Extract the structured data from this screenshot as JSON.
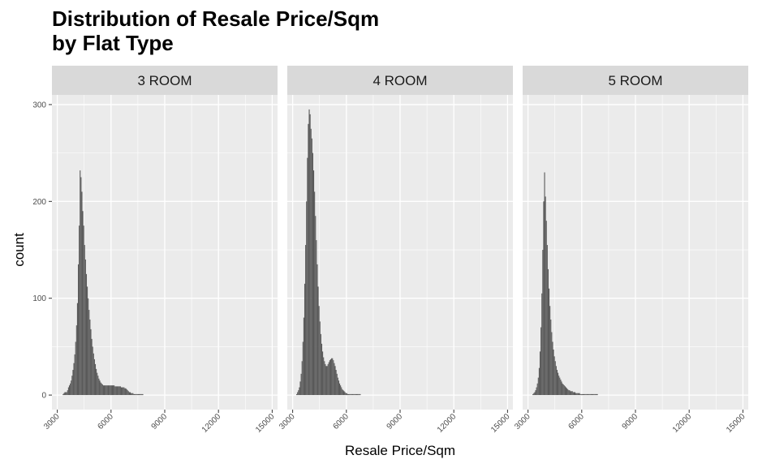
{
  "chart_data": {
    "type": "bar",
    "title_lines": [
      "Distribution of Resale Price/Sqm",
      "by Flat Type"
    ],
    "xlabel": "Resale Price/Sqm",
    "ylabel": "count",
    "xlim": [
      2700,
      15300
    ],
    "ylim": [
      -15,
      310
    ],
    "x_ticks": [
      3000,
      6000,
      9000,
      12000,
      15000
    ],
    "y_ticks": [
      0,
      100,
      200,
      300
    ],
    "bin_width": 50,
    "bar_color": "#595959",
    "panel_bg": "#ebebeb",
    "strip_bg": "#d9d9d9",
    "grid": true,
    "facets": [
      {
        "label": "3 ROOM",
        "x_start": 3200,
        "values": [
          0,
          0,
          1,
          2,
          3,
          3,
          3,
          5,
          8,
          10,
          12,
          15,
          20,
          26,
          33,
          42,
          55,
          72,
          95,
          135,
          175,
          232,
          225,
          210,
          190,
          175,
          155,
          140,
          125,
          112,
          100,
          88,
          78,
          68,
          58,
          50,
          43,
          37,
          32,
          27,
          23,
          20,
          17,
          15,
          13,
          12,
          11,
          10,
          10,
          10,
          10,
          10,
          10,
          10,
          10,
          10,
          10,
          10,
          10,
          10,
          9,
          9,
          9,
          9,
          9,
          9,
          9,
          8,
          8,
          8,
          8,
          7,
          7,
          6,
          5,
          4,
          3,
          3,
          2,
          2,
          2,
          1,
          1,
          1,
          1,
          1,
          1,
          1,
          1,
          1,
          1,
          1,
          0,
          0,
          0,
          0,
          0,
          0,
          0,
          0,
          0,
          0,
          0,
          0,
          0,
          0,
          0,
          0,
          0,
          0,
          0,
          0,
          0,
          0,
          0,
          0,
          0,
          0,
          0,
          0,
          0,
          0,
          0,
          0,
          0,
          0,
          0,
          0,
          0,
          0,
          0,
          0,
          0,
          0,
          0,
          0,
          0,
          0,
          0,
          0,
          0,
          0,
          0,
          0,
          0,
          0,
          0,
          0,
          0,
          0,
          0,
          0,
          0,
          0,
          0,
          0,
          0,
          0,
          0,
          0,
          0,
          0,
          0,
          0,
          0,
          0,
          0,
          0,
          0,
          0,
          0,
          0,
          0,
          0,
          0,
          0,
          0,
          0,
          0,
          0,
          0,
          0,
          0,
          0,
          0,
          0,
          0,
          0,
          0,
          0,
          0,
          0,
          0,
          0,
          0,
          0,
          0,
          0,
          0,
          0,
          0,
          0,
          0,
          0,
          0,
          0,
          0,
          0,
          0,
          0,
          0,
          0,
          0,
          0,
          0,
          0,
          0,
          0,
          0,
          0,
          0,
          0,
          0,
          0,
          0,
          0,
          0,
          0,
          0,
          0,
          0,
          0,
          0,
          0,
          0,
          0,
          0
        ]
      },
      {
        "label": "4 ROOM",
        "x_start": 3200,
        "values": [
          1,
          3,
          5,
          8,
          14,
          22,
          35,
          55,
          80,
          115,
          155,
          200,
          245,
          280,
          295,
          290,
          275,
          265,
          250,
          232,
          210,
          185,
          160,
          135,
          112,
          92,
          76,
          63,
          53,
          45,
          39,
          35,
          32,
          30,
          30,
          32,
          34,
          36,
          37,
          38,
          38,
          36,
          33,
          30,
          26,
          22,
          18,
          15,
          12,
          10,
          8,
          6,
          5,
          4,
          3,
          2,
          2,
          1,
          1,
          1,
          1,
          1,
          1,
          1,
          1,
          1,
          1,
          1,
          1,
          1,
          1,
          1,
          0,
          0,
          0,
          0,
          0,
          0,
          0,
          0,
          0,
          0,
          0,
          0,
          0,
          0,
          0,
          0,
          0,
          0,
          0,
          0,
          0,
          0,
          0,
          0,
          0,
          0,
          0,
          0,
          0,
          0,
          0,
          0,
          0,
          0,
          0,
          0,
          0,
          0,
          0,
          0,
          0,
          0,
          0,
          0,
          0,
          0,
          0,
          0,
          0,
          0,
          0,
          0,
          0,
          0,
          0,
          0,
          0,
          0,
          0,
          0,
          0,
          0,
          0,
          0,
          0,
          0,
          0,
          0,
          0,
          0,
          0,
          0,
          0,
          0,
          0,
          0,
          0,
          0,
          0,
          0,
          0,
          0,
          0,
          0,
          0,
          0,
          0,
          0,
          0,
          0,
          0,
          0,
          0,
          0,
          0,
          0,
          0,
          0,
          0,
          0,
          0,
          0,
          0,
          0,
          0,
          0,
          0,
          0,
          0,
          0,
          0,
          0,
          0,
          0,
          0,
          0,
          0,
          0,
          0,
          0,
          0,
          0,
          0,
          0,
          0,
          0,
          0,
          0,
          0,
          0,
          0,
          0,
          0,
          0,
          0,
          0,
          0,
          0,
          0,
          0,
          0,
          0,
          0,
          0,
          0,
          0,
          0,
          0,
          0,
          0,
          0,
          0,
          0,
          0,
          0,
          0,
          0,
          0,
          0,
          0,
          0,
          0,
          0,
          0,
          0
        ]
      },
      {
        "label": "5 ROOM",
        "x_start": 3200,
        "values": [
          0,
          1,
          2,
          3,
          5,
          8,
          12,
          18,
          28,
          45,
          70,
          105,
          150,
          200,
          230,
          205,
          180,
          155,
          130,
          110,
          92,
          78,
          65,
          55,
          47,
          40,
          35,
          30,
          26,
          23,
          20,
          18,
          16,
          14,
          12,
          11,
          10,
          9,
          8,
          7,
          6,
          5,
          5,
          4,
          4,
          4,
          3,
          3,
          3,
          2,
          2,
          2,
          2,
          2,
          1,
          1,
          1,
          1,
          1,
          1,
          1,
          1,
          1,
          1,
          1,
          1,
          1,
          1,
          1,
          1,
          1,
          1,
          1,
          1,
          0,
          0,
          0,
          0,
          0,
          0,
          0,
          0,
          0,
          0,
          0,
          0,
          0,
          0,
          0,
          0,
          0,
          0,
          0,
          0,
          0,
          0,
          0,
          0,
          0,
          0,
          0,
          0,
          0,
          0,
          0,
          0,
          0,
          0,
          0,
          0,
          0,
          0,
          0,
          0,
          0,
          0,
          0,
          0,
          0,
          0,
          0,
          0,
          0,
          0,
          0,
          0,
          0,
          0,
          0,
          0,
          0,
          0,
          0,
          0,
          0,
          0,
          0,
          0,
          0,
          0,
          0,
          0,
          0,
          0,
          0,
          0,
          0,
          0,
          0,
          0,
          0,
          0,
          0,
          0,
          0,
          0,
          0,
          0,
          0,
          0,
          0,
          0,
          0,
          0,
          0,
          0,
          0,
          0,
          0,
          0,
          0,
          0,
          0,
          0,
          0,
          0,
          0,
          0,
          0,
          0,
          0,
          0,
          0,
          0,
          0,
          0,
          0,
          0,
          0,
          0,
          0,
          0,
          0,
          0,
          0,
          0,
          0,
          0,
          0,
          0,
          0,
          0,
          0,
          0,
          0,
          0,
          0,
          0,
          0,
          0,
          0,
          0,
          0,
          0,
          0,
          0,
          0,
          0,
          0,
          0,
          0,
          0,
          0,
          0,
          0,
          0,
          0,
          0,
          0,
          0,
          0,
          0,
          0,
          0,
          0,
          0,
          0,
          0,
          0,
          0,
          0,
          0,
          0,
          0,
          0,
          0,
          0,
          0,
          0,
          0
        ]
      }
    ]
  }
}
